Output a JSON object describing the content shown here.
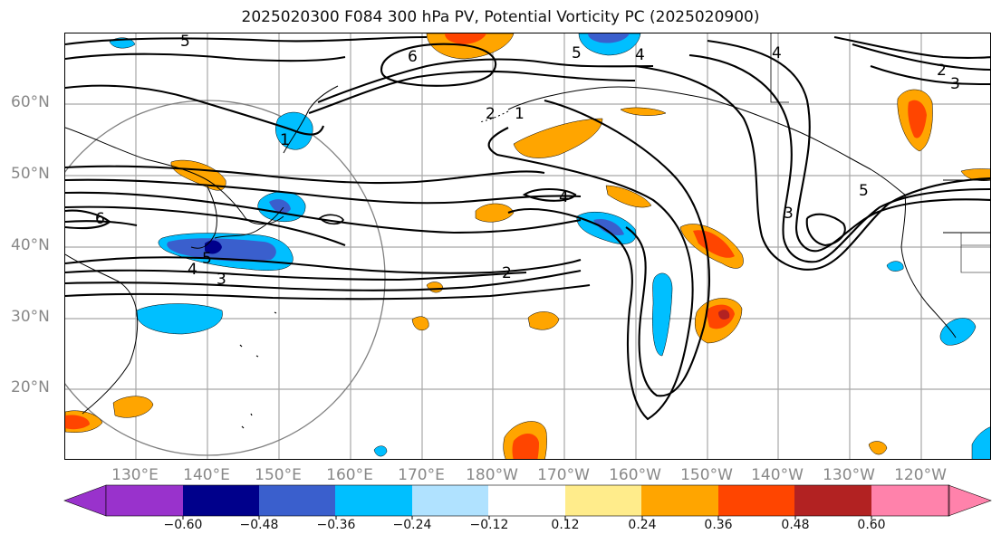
{
  "title": "2025020300 F084 300 hPa PV, Potential Vorticity PC (2025020900)",
  "lat_labels": [
    "60°N",
    "50°N",
    "40°N",
    "30°N",
    "20°N"
  ],
  "lon_labels": [
    "130°E",
    "140°E",
    "150°E",
    "160°E",
    "170°E",
    "180°W",
    "170°W",
    "160°W",
    "150°W",
    "140°W",
    "130°W",
    "120°W"
  ],
  "contour_labels": [
    "5",
    "6",
    "1",
    "2",
    "1",
    "5",
    "4",
    "4",
    "2",
    "3",
    "6",
    "5",
    "4",
    "3",
    "2",
    "4",
    "3",
    "5"
  ],
  "colorbar": {
    "ticks": [
      "−0.60",
      "−0.48",
      "−0.36",
      "−0.24",
      "−0.12",
      "0.12",
      "0.24",
      "0.36",
      "0.48",
      "0.60"
    ],
    "colors": [
      "#9932cc",
      "#00008b",
      "#3a5fcd",
      "#00bfff",
      "#b0e2ff",
      "#ffffff",
      "#ffec8b",
      "#ffa500",
      "#ff4500",
      "#b22222",
      "#ff82ab"
    ]
  }
}
